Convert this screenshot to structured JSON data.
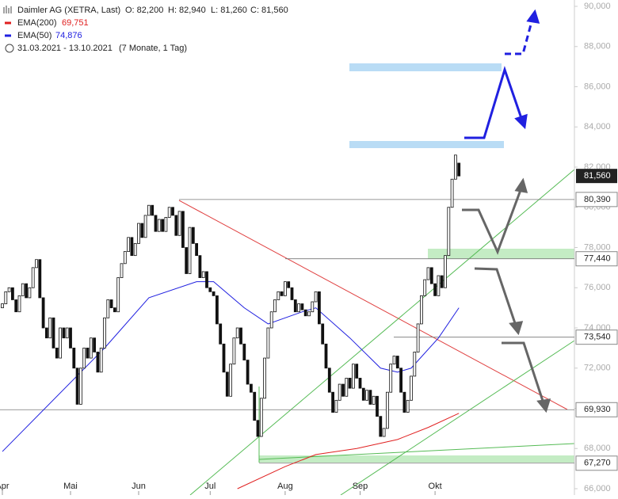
{
  "chart_data": {
    "type": "candlestick",
    "title": "Daimler AG (XETRA, Last)",
    "ohlc_labels": [
      "O: 82,200",
      "H: 82,940",
      "L: 81,260",
      "C: 81,560"
    ],
    "period": "31.03.2021 - 13.10.2021",
    "period_note": "(7 Monate, 1 Tag)",
    "categories": [
      "Apr",
      null,
      null,
      null,
      null,
      null,
      null,
      null,
      null,
      null,
      null,
      null,
      null,
      null,
      null,
      null,
      null,
      null,
      null,
      null,
      "Mai",
      null,
      null,
      null,
      null,
      null,
      null,
      null,
      null,
      null,
      null,
      null,
      null,
      null,
      null,
      null,
      null,
      null,
      null,
      null,
      "Jun",
      null,
      null,
      null,
      null,
      null,
      null,
      null,
      null,
      null,
      null,
      null,
      null,
      null,
      null,
      null,
      null,
      null,
      null,
      null,
      null,
      "Jul",
      null,
      null,
      null,
      null,
      null,
      null,
      null,
      null,
      null,
      null,
      null,
      null,
      null,
      null,
      null,
      null,
      null,
      null,
      null,
      null,
      null,
      "Aug",
      null,
      null,
      null,
      null,
      null,
      null,
      null,
      null,
      null,
      null,
      null,
      null,
      null,
      null,
      null,
      null,
      null,
      null,
      null,
      null,
      null,
      "Sep",
      null,
      null,
      null,
      null,
      null,
      null,
      null,
      null,
      null,
      null,
      null,
      null,
      null,
      null,
      null,
      null,
      null,
      null,
      null,
      null,
      null,
      "Okt",
      null,
      null,
      null,
      null,
      null,
      null,
      null
    ],
    "open": [
      75000,
      75200,
      75800,
      76000,
      75400,
      74800,
      75600,
      76200,
      75500,
      76000,
      77000,
      77400,
      75500,
      74000,
      73500,
      74500,
      73000,
      72500,
      74000,
      73500,
      74000,
      73000,
      72000,
      70200,
      72000,
      73000,
      72500,
      73500,
      72800,
      71800,
      73000,
      74500,
      75400,
      75000,
      74800,
      76500,
      77200,
      77800,
      78500,
      77600,
      78200,
      79200,
      78500,
      79600,
      80100,
      79600,
      78800,
      79400,
      78800,
      79500,
      80000,
      79600,
      78600,
      79800,
      78000,
      76700,
      79000,
      78200,
      77600,
      76500,
      76800,
      76000,
      75800,
      75600,
      74200,
      73200,
      71800,
      70600,
      72200,
      73500,
      74000,
      73200,
      72400,
      71200,
      70800,
      69400,
      68600,
      70500,
      72500,
      74000,
      74800,
      75400,
      75800,
      75600,
      76300,
      76000,
      75400,
      74800,
      75200,
      74900,
      74600,
      74800,
      75300,
      75800,
      74200,
      73200,
      72000,
      70800,
      69800,
      70400,
      71200,
      70600,
      71500,
      71000,
      72200,
      71500,
      71000,
      70400,
      70900,
      70200,
      70600,
      69600,
      68600,
      69000,
      70800,
      72200,
      72600,
      72000,
      70800,
      69800,
      70400,
      71600,
      72800,
      74200,
      75600,
      76400,
      77000,
      76200,
      75600,
      76600,
      76000,
      77600,
      80000,
      81400,
      82200
    ],
    "close": [
      75200,
      75800,
      76000,
      75400,
      74800,
      75600,
      76200,
      75500,
      76000,
      77000,
      77400,
      75500,
      74000,
      73500,
      74500,
      73000,
      72500,
      74000,
      73500,
      74000,
      73000,
      72000,
      70200,
      72000,
      73000,
      72500,
      73500,
      72800,
      71800,
      73000,
      74500,
      75400,
      75000,
      74800,
      76500,
      77200,
      77800,
      78500,
      77600,
      78200,
      79200,
      78500,
      79600,
      80100,
      79600,
      78800,
      79400,
      78800,
      79500,
      80000,
      79600,
      78600,
      79800,
      78000,
      76700,
      79000,
      78200,
      77600,
      76500,
      76800,
      76000,
      75800,
      75600,
      74200,
      73200,
      71800,
      70600,
      72200,
      73500,
      74000,
      73200,
      72400,
      71200,
      70800,
      69400,
      68600,
      70500,
      72500,
      74000,
      74800,
      75400,
      75800,
      75600,
      76300,
      76000,
      75400,
      74800,
      75200,
      74900,
      74600,
      74800,
      75300,
      75800,
      74200,
      73200,
      72000,
      70800,
      69800,
      70400,
      71200,
      70600,
      71500,
      71000,
      72200,
      71500,
      71000,
      70400,
      70900,
      70200,
      70600,
      69600,
      68600,
      69000,
      70800,
      72200,
      72600,
      72000,
      70800,
      69800,
      70400,
      71600,
      72800,
      74200,
      75600,
      76400,
      77000,
      76200,
      75600,
      76600,
      76000,
      77600,
      80000,
      81400,
      82600,
      81560
    ],
    "series": [
      {
        "name": "EMA(200)",
        "value_label": "69,751",
        "color": "#e02020",
        "x": [
          69,
          83,
          92,
          104,
          116,
          125,
          134
        ],
        "values": [
          66000,
          67100,
          67700,
          68000,
          68450,
          69050,
          69750
        ]
      },
      {
        "name": "EMA(50)",
        "value_label": "74,876",
        "color": "#2020e0",
        "x": [
          0,
          30,
          43,
          57,
          62,
          71,
          78,
          88,
          92,
          102,
          111,
          116,
          120,
          128,
          134
        ],
        "values": [
          67850,
          73000,
          75500,
          76300,
          76300,
          75000,
          74200,
          74800,
          75000,
          73500,
          72000,
          71800,
          72000,
          73500,
          75000
        ]
      }
    ],
    "last": {
      "value": 81560,
      "label": "81,560"
    },
    "levels": [
      {
        "value": 80390,
        "label": "80,390"
      },
      {
        "value": 77440,
        "label": "77,440"
      },
      {
        "value": 73540,
        "label": "73,540"
      },
      {
        "value": 69930,
        "label": "69,930"
      },
      {
        "value": 67270,
        "label": "67,270"
      }
    ],
    "ylim": [
      65685,
      90315
    ],
    "yticks": [
      {
        "value": 66000,
        "label": "66,000"
      },
      {
        "value": 68000,
        "label": "68,000"
      },
      {
        "value": 70000,
        "label": "70,000"
      },
      {
        "value": 72000,
        "label": "72,000"
      },
      {
        "value": 74000,
        "label": "74,000"
      },
      {
        "value": 76000,
        "label": "76,000"
      },
      {
        "value": 78000,
        "label": "78,000"
      },
      {
        "value": 80000,
        "label": "80,000"
      },
      {
        "value": 82000,
        "label": "82,000"
      },
      {
        "value": 84000,
        "label": "84,000"
      },
      {
        "value": 86000,
        "label": "86,000"
      },
      {
        "value": 88000,
        "label": "88,000"
      },
      {
        "value": 90000,
        "label": "90,000"
      }
    ]
  }
}
